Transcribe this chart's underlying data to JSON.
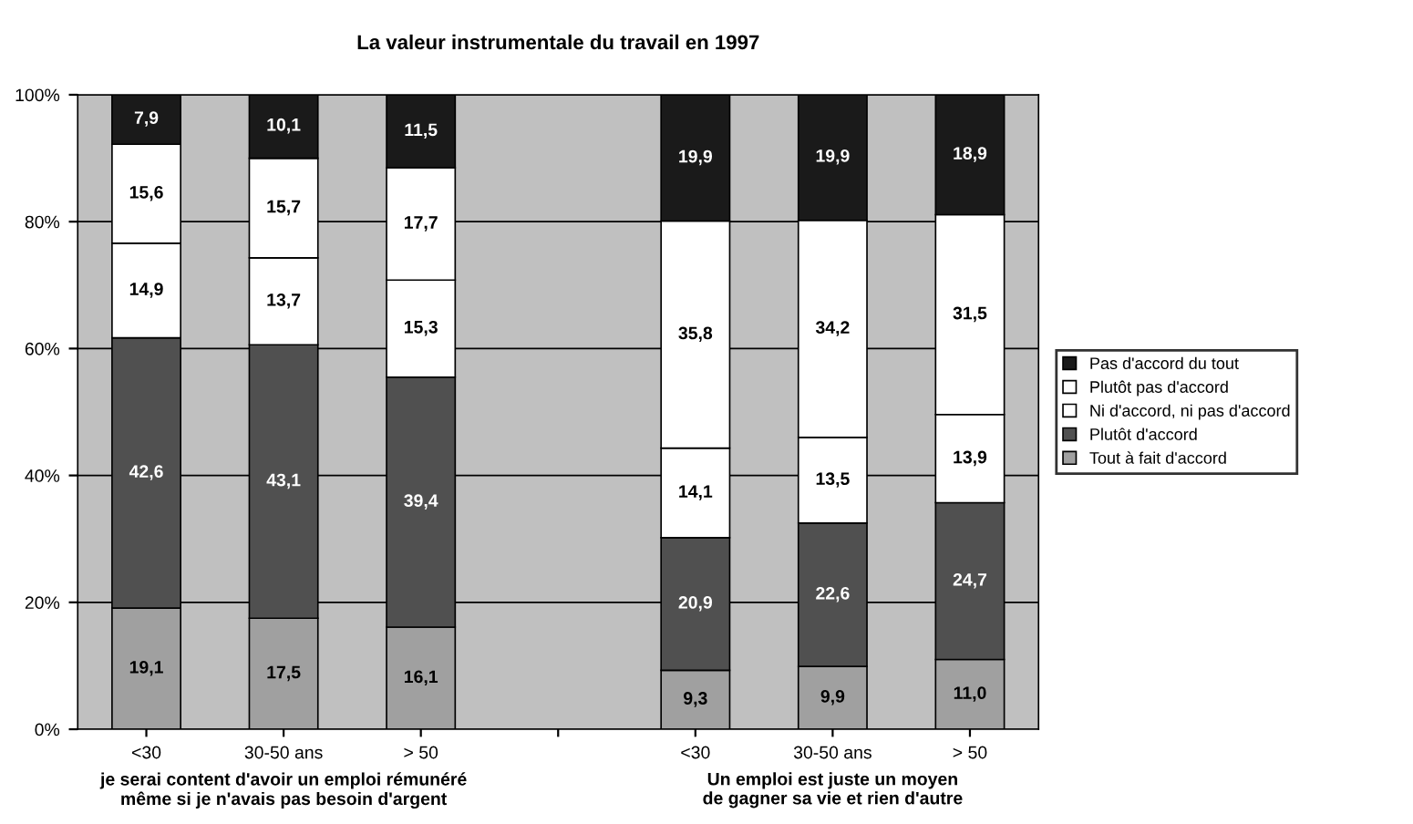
{
  "chart_data": {
    "type": "bar",
    "stacked": true,
    "title": "La valeur instrumentale du travail en 1997",
    "categories": [
      "<30",
      "30-50 ans",
      "> 50",
      null,
      "<30",
      "30-50 ans",
      "> 50"
    ],
    "series": [
      {
        "name": "Tout à fait d'accord",
        "color": "#a0a0a0",
        "values": [
          19.1,
          17.5,
          16.1,
          null,
          9.3,
          9.9,
          11.0
        ],
        "value_labels": [
          "19,1",
          "17,5",
          "16,1",
          null,
          "9,3",
          "9,9",
          "11,0"
        ]
      },
      {
        "name": "Plutôt d'accord",
        "color": "#505050",
        "values": [
          42.6,
          43.1,
          39.4,
          null,
          20.9,
          22.6,
          24.7
        ],
        "value_labels": [
          "42,6",
          "43,1",
          "39,4",
          null,
          "20,9",
          "22,6",
          "24,7"
        ]
      },
      {
        "name": "Ni d'accord, ni pas d'accord",
        "color": "#ffffff",
        "values": [
          14.9,
          13.7,
          15.3,
          null,
          14.1,
          13.5,
          13.9
        ],
        "value_labels": [
          "14,9",
          "13,7",
          "15,3",
          null,
          "14,1",
          "13,5",
          "13,9"
        ]
      },
      {
        "name": "Plutôt pas d'accord",
        "color": "#ffffff",
        "values": [
          15.6,
          15.7,
          17.7,
          null,
          35.8,
          34.2,
          31.5
        ],
        "value_labels": [
          "15,6",
          "15,7",
          "17,7",
          null,
          "35,8",
          "34,2",
          "31,5"
        ]
      },
      {
        "name": "Pas d'accord du tout",
        "color": "#1a1a1a",
        "values": [
          7.9,
          10.1,
          11.5,
          null,
          19.9,
          19.9,
          18.9
        ],
        "value_labels": [
          "7,9",
          "10,1",
          "11,5",
          null,
          "19,9",
          "19,9",
          "18,9"
        ]
      }
    ],
    "ylim": [
      0,
      100
    ],
    "yticks": [
      {
        "value": 0,
        "label": "0%"
      },
      {
        "value": 20,
        "label": "20%"
      },
      {
        "value": 40,
        "label": "40%"
      },
      {
        "value": 60,
        "label": "60%"
      },
      {
        "value": 80,
        "label": "80%"
      },
      {
        "value": 100,
        "label": "100%"
      }
    ],
    "grid": "y",
    "legend": "right",
    "annotations": [
      "je serai content d'avoir un emploi rémunéré\nmême si je n'avais pas besoin d'argent",
      "Un emploi est juste un moyen\nde gagner sa vie et rien d'autre"
    ]
  }
}
